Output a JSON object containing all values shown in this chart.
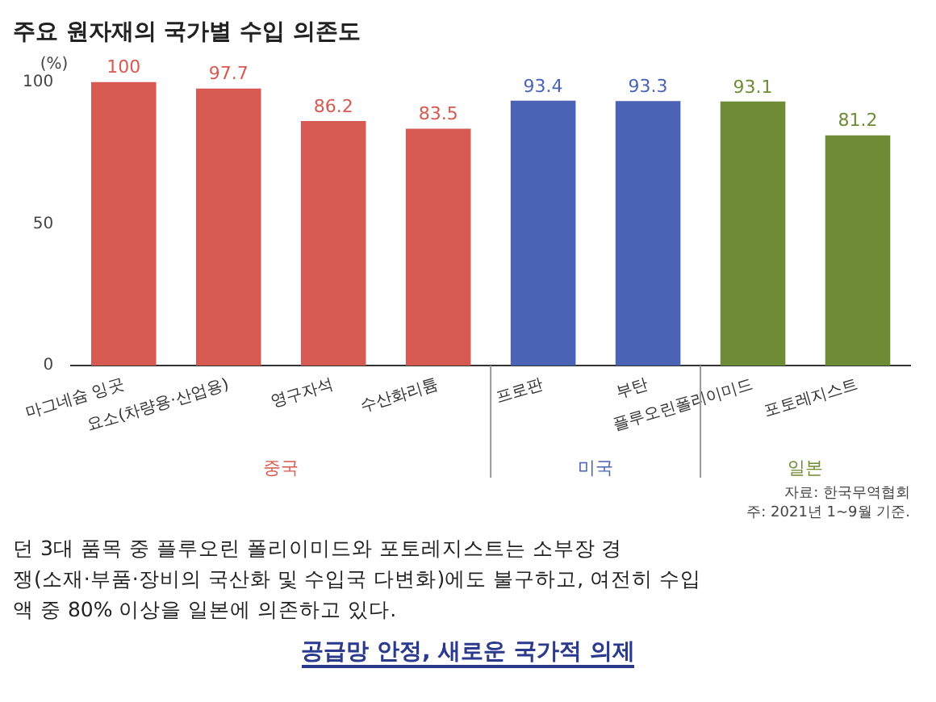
{
  "chart_data": {
    "type": "bar",
    "title": "주요 원자재의 국가별 수입 의존도",
    "ylabel": "(%)",
    "categories": [
      "마그네슘 잉곳",
      "요소(차량용·산업용)",
      "영구자석",
      "수산화리튬",
      "프로판",
      "부탄",
      "플루오린폴리이미드",
      "포토레지스트"
    ],
    "values": [
      100,
      97.7,
      86.2,
      83.5,
      93.4,
      93.3,
      93.1,
      81.2
    ],
    "colors": [
      "#d65a52",
      "#d65a52",
      "#d65a52",
      "#d65a52",
      "#4a63b5",
      "#4a63b5",
      "#6e8c36",
      "#6e8c36"
    ],
    "ylim": [
      0,
      100
    ],
    "yticks": [
      0,
      50,
      100
    ],
    "grid": false,
    "legend": false,
    "data_labels": true,
    "annotations": [
      "중국",
      "미국",
      "일본",
      "자료: 한국무역협회",
      "주: 2021년 1~9월 기준.",
      "던 3대 품목 중 플루오린 폴리이미드와 포토레지스트는 소부장 경",
      "쟁(소재·부품·장비의 국산화 및 수입국 다변화)에도 불구하고, 여전히 수입",
      "액 중 80% 이상을 일본에 의존하고 있다.",
      "공급망 안정, 새로운 국가적 의제"
    ]
  }
}
